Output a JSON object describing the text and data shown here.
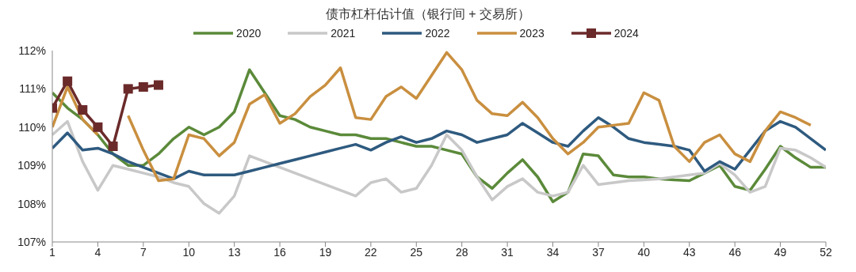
{
  "chart_data": {
    "type": "line",
    "title": "债市杠杆估计值（银行间 + 交易所）",
    "x": [
      1,
      2,
      3,
      4,
      5,
      6,
      7,
      8,
      9,
      10,
      11,
      12,
      13,
      14,
      15,
      16,
      17,
      18,
      19,
      20,
      21,
      22,
      23,
      24,
      25,
      26,
      27,
      28,
      29,
      30,
      31,
      32,
      33,
      34,
      35,
      36,
      37,
      38,
      39,
      40,
      41,
      42,
      43,
      44,
      45,
      46,
      47,
      48,
      49,
      50,
      51,
      52
    ],
    "xlim": [
      1,
      52
    ],
    "xticks": [
      1,
      4,
      7,
      10,
      13,
      16,
      19,
      22,
      25,
      28,
      31,
      34,
      37,
      40,
      43,
      46,
      49,
      52
    ],
    "ylim": [
      107,
      112
    ],
    "yticks": [
      {
        "value": 107,
        "label": "107%"
      },
      {
        "value": 108,
        "label": "108%"
      },
      {
        "value": 109,
        "label": "109%"
      },
      {
        "value": 110,
        "label": "110%"
      },
      {
        "value": 111,
        "label": "111%"
      },
      {
        "value": 112,
        "label": "112%"
      }
    ],
    "grid": false,
    "legend": "top",
    "line_style": "solid",
    "series": [
      {
        "name": "2020",
        "color": "#5b8a3a",
        "marker": "none",
        "values": [
          110.9,
          110.5,
          110.2,
          109.8,
          109.3,
          109.0,
          109.0,
          109.3,
          109.7,
          110.0,
          109.8,
          110.0,
          110.4,
          111.5,
          110.9,
          110.3,
          110.2,
          110.0,
          109.9,
          109.8,
          109.8,
          109.7,
          109.7,
          109.6,
          109.5,
          109.5,
          109.4,
          109.3,
          108.7,
          108.4,
          108.8,
          109.15,
          108.7,
          108.05,
          108.3,
          109.3,
          109.25,
          108.75,
          108.7,
          108.7,
          108.65,
          108.62,
          108.6,
          108.8,
          109.0,
          108.45,
          108.35,
          108.9,
          109.5,
          109.2,
          108.95,
          108.95
        ]
      },
      {
        "name": "2021",
        "color": "#c8c8c8",
        "marker": "none",
        "values": [
          109.8,
          110.15,
          109.1,
          108.35,
          109.0,
          108.9,
          108.8,
          108.7,
          108.55,
          108.45,
          108.0,
          107.75,
          108.2,
          109.25,
          109.1,
          108.95,
          108.8,
          108.65,
          108.5,
          108.35,
          108.2,
          108.55,
          108.65,
          108.3,
          108.4,
          109.0,
          109.8,
          109.4,
          108.7,
          108.1,
          108.45,
          108.65,
          108.3,
          108.2,
          108.3,
          109.0,
          108.5,
          108.55,
          108.6,
          108.62,
          108.65,
          108.7,
          108.75,
          108.8,
          109.05,
          108.75,
          108.3,
          108.45,
          109.45,
          109.4,
          109.2,
          108.95
        ]
      },
      {
        "name": "2022",
        "color": "#2e5a7f",
        "marker": "none",
        "values": [
          109.45,
          109.85,
          109.4,
          109.45,
          109.3,
          109.1,
          108.95,
          108.8,
          108.65,
          108.85,
          108.75,
          108.75,
          108.75,
          108.85,
          108.95,
          109.05,
          109.15,
          109.25,
          109.35,
          109.45,
          109.55,
          109.4,
          109.6,
          109.75,
          109.6,
          109.7,
          109.9,
          109.8,
          109.6,
          109.7,
          109.8,
          110.1,
          109.85,
          109.6,
          109.5,
          109.9,
          110.25,
          110.0,
          109.7,
          109.6,
          109.55,
          109.5,
          109.4,
          108.85,
          109.1,
          108.9,
          109.4,
          109.9,
          110.15,
          110.0,
          109.7,
          109.4
        ]
      },
      {
        "name": "2023",
        "color": "#c98f3f",
        "marker": "none",
        "values": [
          110.0,
          111.05,
          110.2,
          109.8,
          null,
          110.3,
          109.4,
          108.6,
          108.65,
          109.8,
          109.7,
          109.25,
          109.6,
          110.6,
          110.85,
          110.1,
          110.35,
          110.8,
          111.1,
          111.55,
          110.25,
          110.2,
          110.8,
          111.05,
          110.75,
          111.35,
          111.95,
          111.5,
          110.7,
          110.35,
          110.3,
          110.65,
          110.25,
          109.7,
          109.3,
          109.6,
          110.0,
          110.05,
          110.1,
          110.9,
          110.7,
          109.5,
          109.1,
          109.6,
          109.8,
          109.3,
          109.1,
          109.9,
          110.4,
          110.25,
          110.05,
          null
        ]
      },
      {
        "name": "2024",
        "color": "#6b2a2a",
        "marker": "square",
        "x": [
          1,
          2,
          3,
          4,
          5,
          6,
          7,
          8
        ],
        "values": [
          110.5,
          111.2,
          110.45,
          110.0,
          109.5,
          111.0,
          111.05,
          111.1
        ]
      }
    ]
  }
}
